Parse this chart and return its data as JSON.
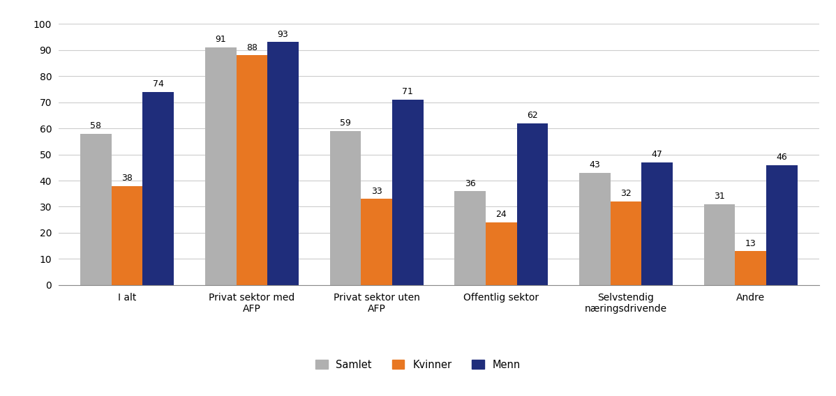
{
  "categories": [
    "I alt",
    "Privat sektor med\nAFP",
    "Privat sektor uten\nAFP",
    "Offentlig sektor",
    "Selvstendig\nnæringsdrivende",
    "Andre"
  ],
  "series": {
    "Samlet": [
      58,
      91,
      59,
      36,
      43,
      31
    ],
    "Kvinner": [
      38,
      88,
      33,
      24,
      32,
      13
    ],
    "Menn": [
      74,
      93,
      71,
      62,
      47,
      46
    ]
  },
  "colors": {
    "Samlet": "#b0b0b0",
    "Kvinner": "#e87722",
    "Menn": "#1f2d7b"
  },
  "ylim": [
    0,
    100
  ],
  "yticks": [
    0,
    10,
    20,
    30,
    40,
    50,
    60,
    70,
    80,
    90,
    100
  ],
  "bar_width": 0.25,
  "legend_labels": [
    "Samlet",
    "Kvinner",
    "Menn"
  ],
  "background_color": "#ffffff",
  "label_fontsize": 9,
  "tick_fontsize": 10,
  "legend_fontsize": 10.5
}
